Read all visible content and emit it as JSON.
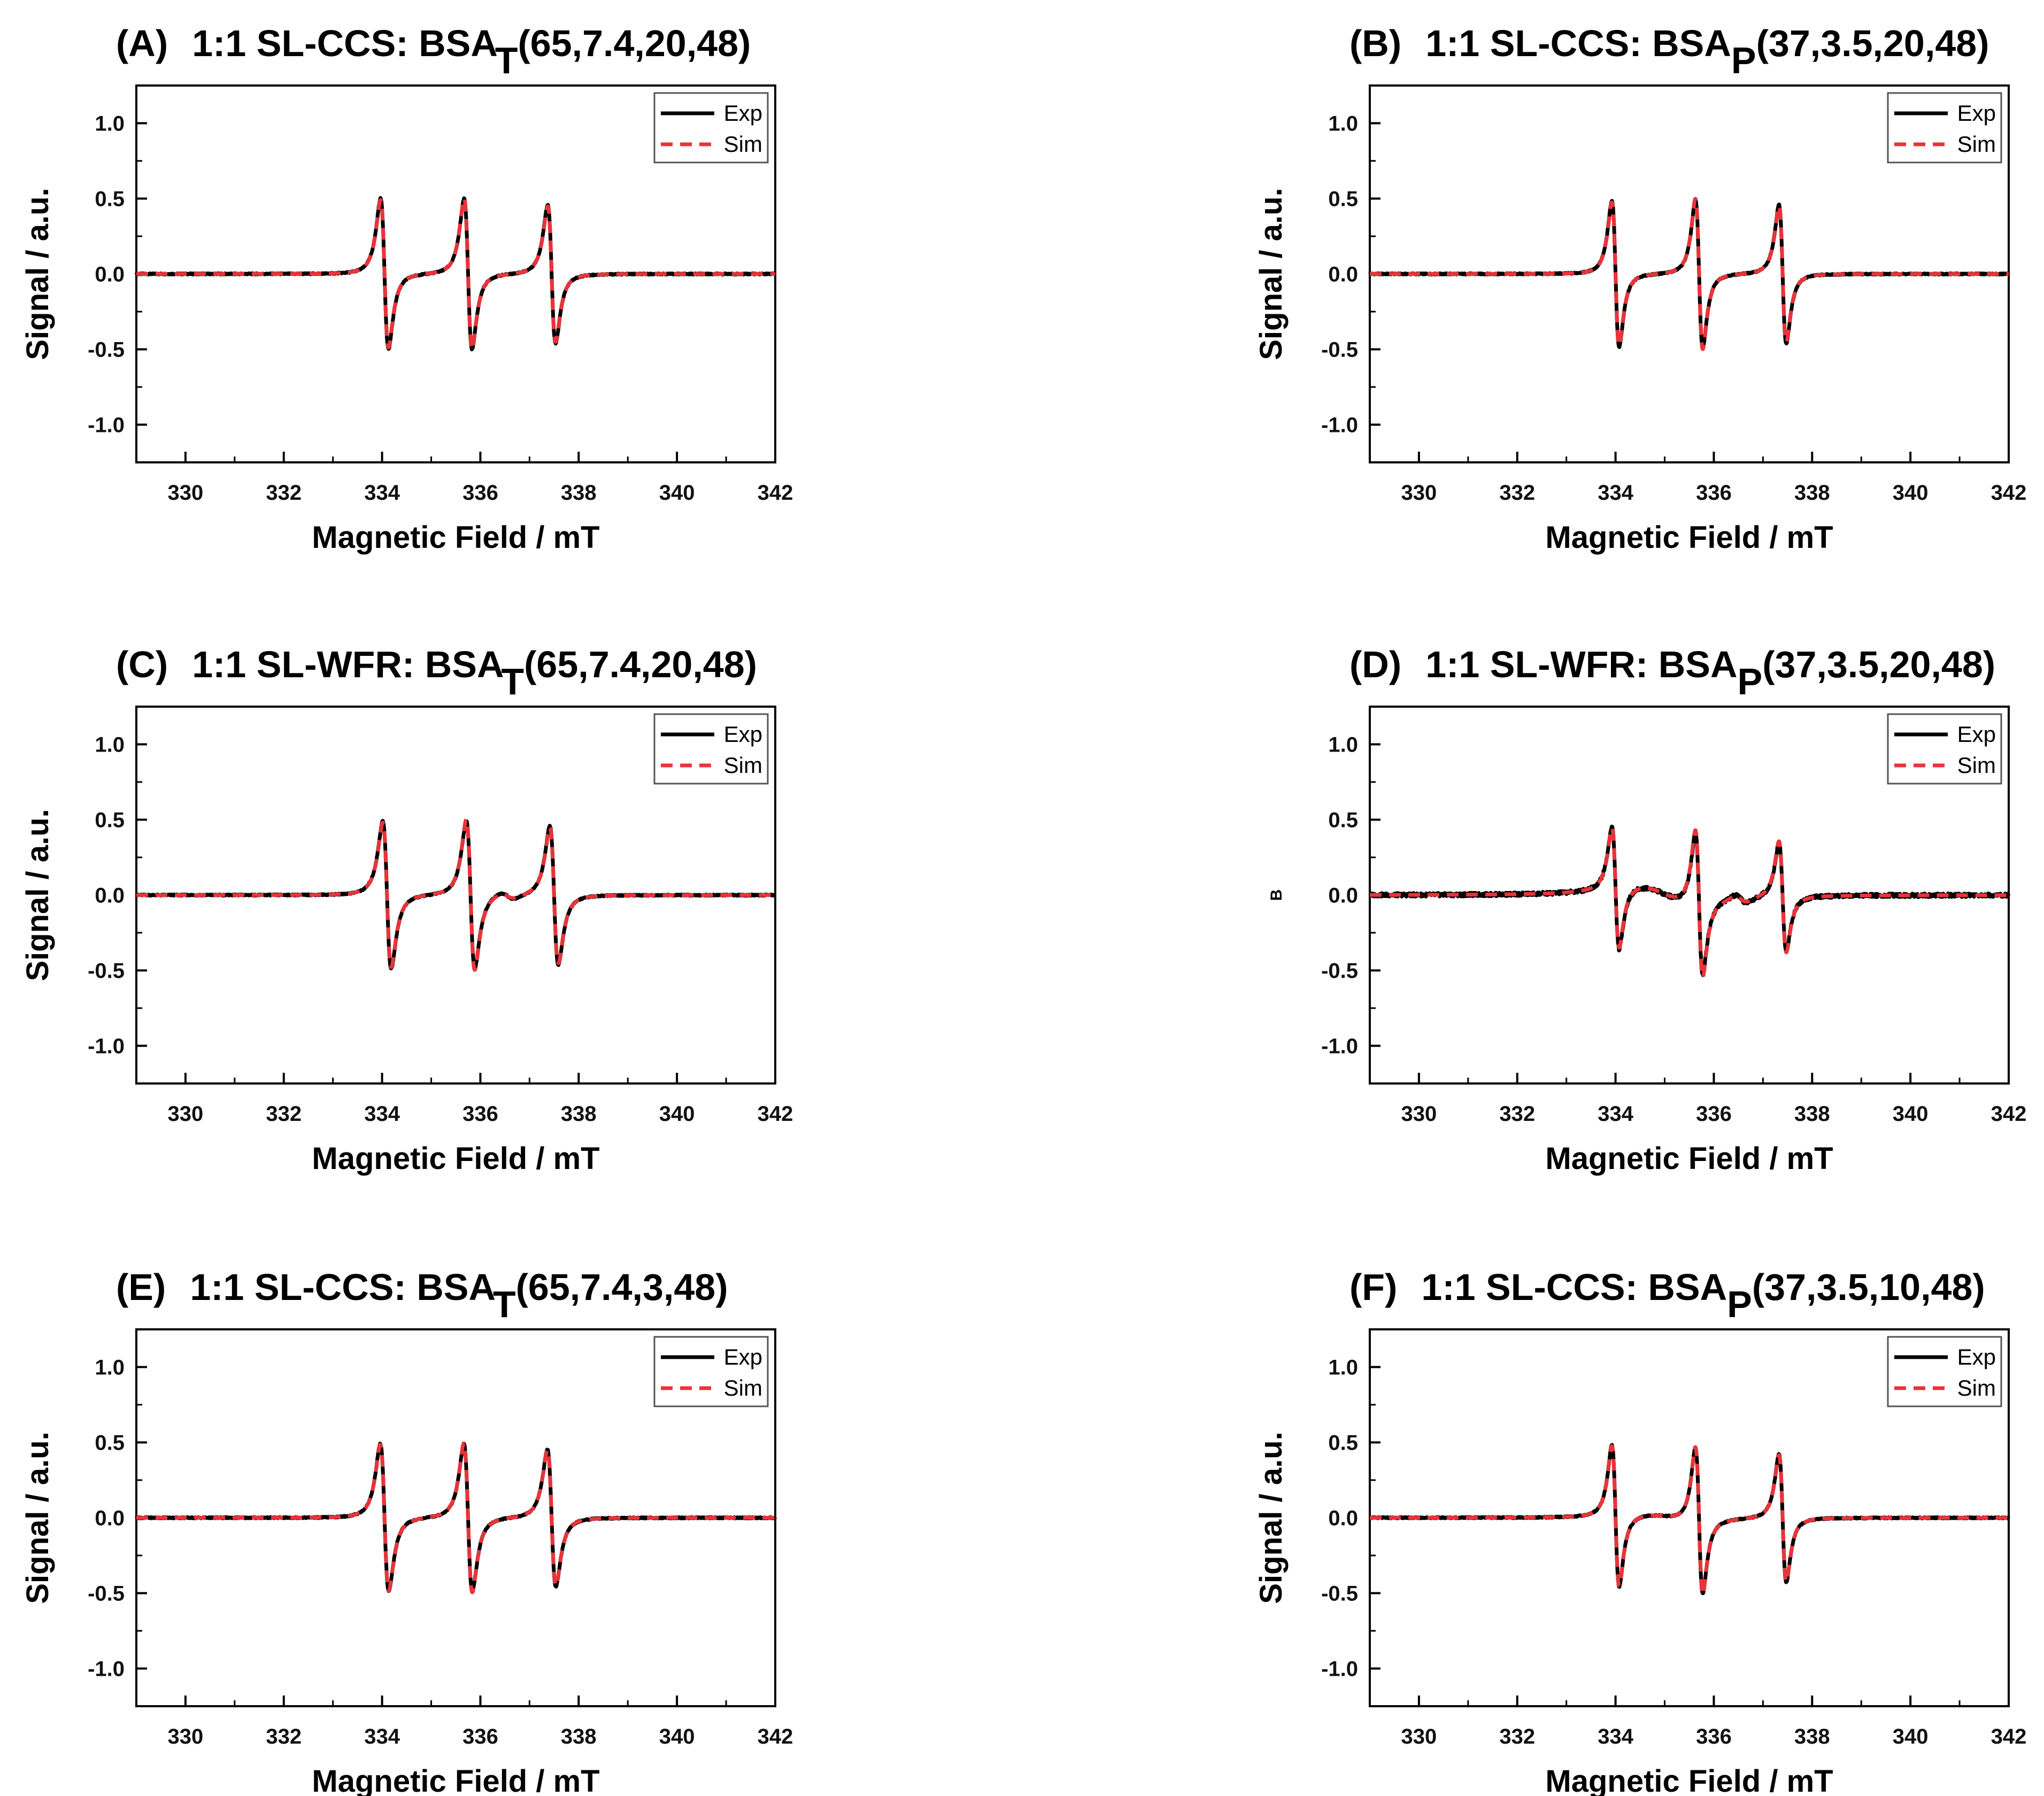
{
  "colors": {
    "exp": "#000000",
    "sim": "#e8343a",
    "axis": "#000000",
    "legend_border": "#555555"
  },
  "chart_data": [
    {
      "id": "A",
      "type": "line",
      "title": {
        "label": "(A)",
        "prefix": "1:1 SL-CCS: BSA",
        "subscript": "T",
        "suffix": "(65,7.4,20,48)"
      },
      "xlabel": "Magnetic Field / mT",
      "ylabel": "Signal / a.u.",
      "xlim": [
        329,
        342
      ],
      "ylim": [
        -1.25,
        1.25
      ],
      "xticks": [
        "330",
        "332",
        "334",
        "336",
        "338",
        "340",
        "342"
      ],
      "yticks": [
        "1.0",
        "0.5",
        "0.0",
        "-0.5",
        "-1.0"
      ],
      "legend": {
        "position": "top-right",
        "entries": [
          "Exp",
          "Sim"
        ]
      },
      "series": [
        {
          "name": "Exp",
          "style": "solid",
          "lines": [
            {
              "center": 334.05,
              "amp": 1.0,
              "width": 0.14
            },
            {
              "center": 335.75,
              "amp": 1.0,
              "width": 0.14
            },
            {
              "center": 337.45,
              "amp": 0.92,
              "width": 0.14
            }
          ]
        },
        {
          "name": "Sim",
          "style": "dashed",
          "lines": [
            {
              "center": 334.05,
              "amp": 0.98,
              "width": 0.14
            },
            {
              "center": 335.75,
              "amp": 1.0,
              "width": 0.14
            },
            {
              "center": 337.45,
              "amp": 0.9,
              "width": 0.14
            }
          ]
        }
      ]
    },
    {
      "id": "B",
      "type": "line",
      "title": {
        "label": "(B)",
        "prefix": "1:1 SL-CCS: BSA",
        "subscript": "P",
        "suffix": "(37,3.5,20,48)"
      },
      "xlabel": "Magnetic Field / mT",
      "ylabel": "Signal / a.u.",
      "xlim": [
        329,
        342
      ],
      "ylim": [
        -1.25,
        1.25
      ],
      "xticks": [
        "330",
        "332",
        "334",
        "336",
        "338",
        "340",
        "342"
      ],
      "yticks": [
        "1.0",
        "0.5",
        "0.0",
        "-0.5",
        "-1.0"
      ],
      "legend": {
        "position": "top-right",
        "entries": [
          "Exp",
          "Sim"
        ]
      },
      "series": [
        {
          "name": "Exp",
          "style": "solid",
          "lines": [
            {
              "center": 334.0,
              "amp": 0.97,
              "width": 0.13
            },
            {
              "center": 335.7,
              "amp": 0.98,
              "width": 0.13
            },
            {
              "center": 337.4,
              "amp": 0.92,
              "width": 0.13
            }
          ]
        },
        {
          "name": "Sim",
          "style": "dashed",
          "lines": [
            {
              "center": 334.0,
              "amp": 0.95,
              "width": 0.13
            },
            {
              "center": 335.7,
              "amp": 1.0,
              "width": 0.13
            },
            {
              "center": 337.4,
              "amp": 0.9,
              "width": 0.13
            }
          ]
        }
      ]
    },
    {
      "id": "C",
      "type": "line",
      "title": {
        "label": "(C)",
        "prefix": "1:1 SL-WFR: BSA",
        "subscript": "T",
        "suffix": "(65,7.4,20,48)"
      },
      "xlabel": "Magnetic Field / mT",
      "ylabel": "Signal / a.u.",
      "xlim": [
        329,
        342
      ],
      "ylim": [
        -1.25,
        1.25
      ],
      "xticks": [
        "330",
        "332",
        "334",
        "336",
        "338",
        "340",
        "342"
      ],
      "yticks": [
        "1.0",
        "0.5",
        "0.0",
        "-0.5",
        "-1.0"
      ],
      "legend": {
        "position": "top-right",
        "entries": [
          "Exp",
          "Sim"
        ]
      },
      "series": [
        {
          "name": "Exp",
          "style": "solid",
          "lines": [
            {
              "center": 334.1,
              "amp": 0.98,
              "width": 0.15
            },
            {
              "center": 335.8,
              "amp": 0.98,
              "width": 0.15
            },
            {
              "center": 337.5,
              "amp": 0.92,
              "width": 0.15
            },
            {
              "center": 336.55,
              "amp": 0.05,
              "width": 0.25
            }
          ]
        },
        {
          "name": "Sim",
          "style": "dashed",
          "lines": [
            {
              "center": 334.1,
              "amp": 0.96,
              "width": 0.15
            },
            {
              "center": 335.8,
              "amp": 1.0,
              "width": 0.15
            },
            {
              "center": 337.5,
              "amp": 0.9,
              "width": 0.15
            },
            {
              "center": 336.55,
              "amp": 0.04,
              "width": 0.25
            }
          ]
        }
      ]
    },
    {
      "id": "D",
      "type": "line",
      "title": {
        "label": "(D)",
        "prefix": "1:1 SL-WFR: BSA",
        "subscript": "P",
        "suffix": "(37,3.5,20,48)"
      },
      "xlabel": "Magnetic Field / mT",
      "ylabel": "B",
      "xlim": [
        329,
        342
      ],
      "ylim": [
        -1.25,
        1.25
      ],
      "xticks": [
        "330",
        "332",
        "334",
        "336",
        "338",
        "340",
        "342"
      ],
      "yticks": [
        "1.0",
        "0.5",
        "0.0",
        "-0.5",
        "-1.0"
      ],
      "legend": {
        "position": "top-right",
        "entries": [
          "Exp",
          "Sim"
        ]
      },
      "series": [
        {
          "name": "Exp",
          "style": "solid",
          "noise": 0.012,
          "lines": [
            {
              "center": 334.0,
              "amp": 0.82,
              "width": 0.13
            },
            {
              "center": 335.7,
              "amp": 0.95,
              "width": 0.13
            },
            {
              "center": 337.4,
              "amp": 0.72,
              "width": 0.13
            },
            {
              "center": 335.0,
              "amp": 0.12,
              "width": 1.0
            },
            {
              "center": 336.55,
              "amp": 0.06,
              "width": 0.22
            }
          ]
        },
        {
          "name": "Sim",
          "style": "dashed",
          "lines": [
            {
              "center": 334.0,
              "amp": 0.8,
              "width": 0.13
            },
            {
              "center": 335.7,
              "amp": 0.98,
              "width": 0.13
            },
            {
              "center": 337.4,
              "amp": 0.74,
              "width": 0.13
            },
            {
              "center": 335.0,
              "amp": 0.12,
              "width": 1.0
            },
            {
              "center": 336.55,
              "amp": 0.05,
              "width": 0.22
            }
          ]
        }
      ]
    },
    {
      "id": "E",
      "type": "line",
      "title": {
        "label": "(E)",
        "prefix": "1:1 SL-CCS: BSA",
        "subscript": "T",
        "suffix": "(65,7.4,3,48)"
      },
      "xlabel": "Magnetic Field / mT",
      "ylabel": "Signal / a.u.",
      "xlim": [
        329,
        342
      ],
      "ylim": [
        -1.25,
        1.25
      ],
      "xticks": [
        "330",
        "332",
        "334",
        "336",
        "338",
        "340",
        "342"
      ],
      "yticks": [
        "1.0",
        "0.5",
        "0.0",
        "-0.5",
        "-1.0"
      ],
      "legend": {
        "position": "top-right",
        "entries": [
          "Exp",
          "Sim"
        ]
      },
      "series": [
        {
          "name": "Exp",
          "style": "solid",
          "lines": [
            {
              "center": 334.05,
              "amp": 0.98,
              "width": 0.15
            },
            {
              "center": 335.75,
              "amp": 0.98,
              "width": 0.15
            },
            {
              "center": 337.45,
              "amp": 0.91,
              "width": 0.15
            }
          ]
        },
        {
          "name": "Sim",
          "style": "dashed",
          "lines": [
            {
              "center": 334.05,
              "amp": 0.97,
              "width": 0.15
            },
            {
              "center": 335.75,
              "amp": 0.99,
              "width": 0.15
            },
            {
              "center": 337.45,
              "amp": 0.9,
              "width": 0.15
            }
          ]
        }
      ]
    },
    {
      "id": "F",
      "type": "line",
      "title": {
        "label": "(F)",
        "prefix": "1:1 SL-CCS: BSA",
        "subscript": "P",
        "suffix": "(37,3.5,10,48)"
      },
      "xlabel": "Magnetic Field / mT",
      "ylabel": "Signal / a.u.",
      "xlim": [
        329,
        342
      ],
      "ylim": [
        -1.25,
        1.25
      ],
      "xticks": [
        "330",
        "332",
        "334",
        "336",
        "338",
        "340",
        "342"
      ],
      "yticks": [
        "1.0",
        "0.5",
        "0.0",
        "-0.5",
        "-1.0"
      ],
      "legend": {
        "position": "top-right",
        "entries": [
          "Exp",
          "Sim"
        ]
      },
      "series": [
        {
          "name": "Exp",
          "style": "solid",
          "lines": [
            {
              "center": 334.0,
              "amp": 0.94,
              "width": 0.13
            },
            {
              "center": 335.7,
              "amp": 0.97,
              "width": 0.13
            },
            {
              "center": 337.4,
              "amp": 0.85,
              "width": 0.13
            },
            {
              "center": 335.1,
              "amp": 0.04,
              "width": 0.9
            }
          ]
        },
        {
          "name": "Sim",
          "style": "dashed",
          "lines": [
            {
              "center": 334.0,
              "amp": 0.93,
              "width": 0.13
            },
            {
              "center": 335.7,
              "amp": 0.98,
              "width": 0.13
            },
            {
              "center": 337.4,
              "amp": 0.84,
              "width": 0.13
            },
            {
              "center": 335.1,
              "amp": 0.04,
              "width": 0.9
            }
          ]
        }
      ]
    }
  ]
}
